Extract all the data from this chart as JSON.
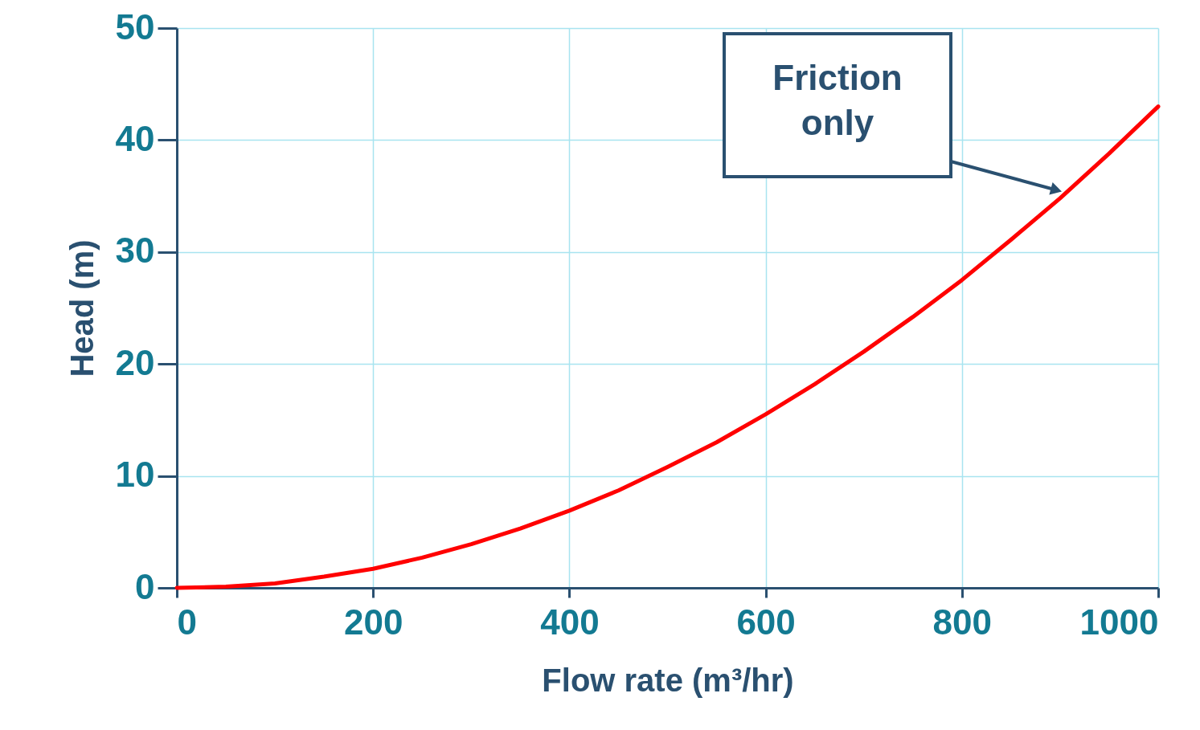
{
  "chart_data": {
    "type": "line",
    "xlabel": "Flow rate (m³/hr)",
    "ylabel": "Head (m)",
    "x": [
      0,
      50,
      100,
      150,
      200,
      250,
      300,
      350,
      400,
      450,
      500,
      550,
      600,
      650,
      700,
      750,
      800,
      850,
      900,
      950,
      1000
    ],
    "series": [
      {
        "color": "#ff0000",
        "values": [
          0,
          0.1,
          0.4,
          1.0,
          1.7,
          2.7,
          3.9,
          5.3,
          6.9,
          8.7,
          10.8,
          13.0,
          15.5,
          18.2,
          21.1,
          24.2,
          27.5,
          31.1,
          34.8,
          38.8,
          43.0
        ]
      }
    ],
    "xlim": [
      0,
      1000
    ],
    "xticks": [
      0,
      200,
      400,
      600,
      800,
      1000
    ],
    "ylim": [
      0,
      50
    ],
    "yticks": [
      0,
      10,
      20,
      30,
      40,
      50
    ],
    "grid": true,
    "line_style": "solid",
    "marker": "none",
    "annotations": [
      "Friction\nonly"
    ]
  }
}
